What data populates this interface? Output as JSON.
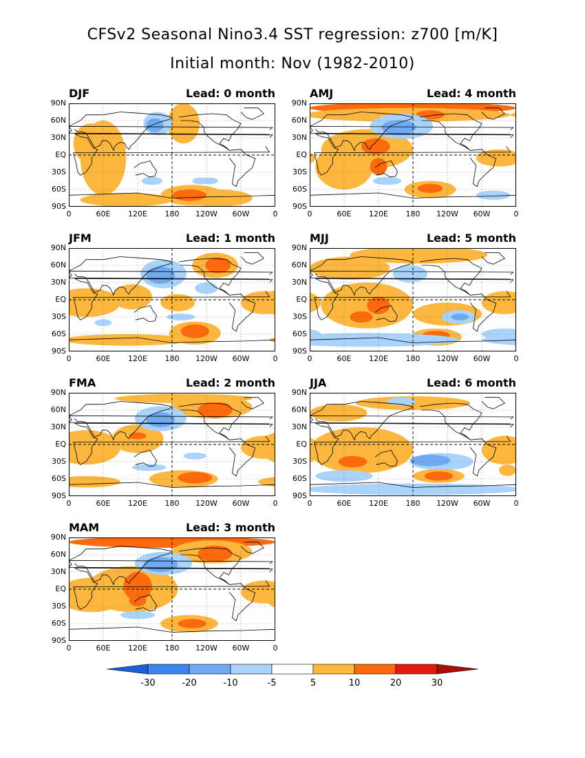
{
  "title": {
    "line1": "CFSv2 Seasonal Nino3.4 SST regression: z700 [m/K]",
    "line2": "Initial month: Nov (1982-2010)"
  },
  "lat_ticks": [
    "90N",
    "60N",
    "30N",
    "EQ",
    "30S",
    "60S",
    "90S"
  ],
  "lon_ticks": [
    "0",
    "60E",
    "120E",
    "180",
    "120W",
    "60W",
    "0"
  ],
  "colors": {
    "n30": "#1f5fd6",
    "n20": "#3b86ec",
    "n10": "#6fa9f2",
    "n5": "#a9d3fb",
    "p5": "#fdb73f",
    "p10": "#fd6a0d",
    "p20": "#e11c0f",
    "p30": "#a50f0a"
  },
  "panels": [
    {
      "id": "djf",
      "season": "DJF",
      "lead": "Lead: 0 month",
      "blobs": [
        {
          "c": "p5",
          "x": 200,
          "y": 55,
          "rx": 28,
          "ry": 35
        },
        {
          "c": "p5",
          "x": 60,
          "y": -5,
          "rx": 40,
          "ry": 65
        },
        {
          "c": "p5",
          "x": 38,
          "y": 20,
          "rx": 30,
          "ry": 35
        },
        {
          "c": "p5",
          "x": 215,
          "y": -70,
          "rx": 55,
          "ry": 18
        },
        {
          "c": "p5",
          "x": 260,
          "y": -75,
          "rx": 60,
          "ry": 15
        },
        {
          "c": "p5",
          "x": 100,
          "y": -78,
          "rx": 80,
          "ry": 12
        },
        {
          "c": "p10",
          "x": 210,
          "y": -70,
          "rx": 30,
          "ry": 10
        },
        {
          "c": "n5",
          "x": 155,
          "y": 55,
          "rx": 25,
          "ry": 20
        },
        {
          "c": "n10",
          "x": 150,
          "y": 52,
          "rx": 15,
          "ry": 12
        },
        {
          "c": "n5",
          "x": 145,
          "y": -45,
          "rx": 18,
          "ry": 7
        },
        {
          "c": "n5",
          "x": 230,
          "y": -45,
          "rx": 15,
          "ry": 6
        },
        {
          "c": "n5",
          "x": -115,
          "y": -45,
          "rx": 15,
          "ry": 6
        }
      ]
    },
    {
      "id": "amj",
      "season": "AMJ",
      "lead": "Lead: 4 month",
      "blobs": [
        {
          "c": "p10",
          "x": 180,
          "y": 82,
          "rx": 180,
          "ry": 10
        },
        {
          "c": "p5",
          "x": 170,
          "y": 70,
          "rx": 180,
          "ry": 12
        },
        {
          "c": "p5",
          "x": 100,
          "y": 10,
          "rx": 80,
          "ry": 35
        },
        {
          "c": "p5",
          "x": 60,
          "y": -20,
          "rx": 50,
          "ry": 40
        },
        {
          "c": "p5",
          "x": -30,
          "y": -5,
          "rx": 40,
          "ry": 15
        },
        {
          "c": "p10",
          "x": 115,
          "y": 15,
          "rx": 25,
          "ry": 14
        },
        {
          "c": "p10",
          "x": 120,
          "y": -20,
          "rx": 15,
          "ry": 15
        },
        {
          "c": "p10",
          "x": 210,
          "y": 70,
          "rx": 25,
          "ry": 8
        },
        {
          "c": "n5",
          "x": 160,
          "y": 50,
          "rx": 55,
          "ry": 22
        },
        {
          "c": "n10",
          "x": 155,
          "y": 48,
          "rx": 30,
          "ry": 13
        },
        {
          "c": "p5",
          "x": 210,
          "y": -60,
          "rx": 45,
          "ry": 15
        },
        {
          "c": "p10",
          "x": 210,
          "y": -58,
          "rx": 22,
          "ry": 8
        },
        {
          "c": "n5",
          "x": 135,
          "y": -45,
          "rx": 25,
          "ry": 7
        },
        {
          "c": "n5",
          "x": 320,
          "y": -70,
          "rx": 30,
          "ry": 8
        }
      ]
    },
    {
      "id": "jfm",
      "season": "JFM",
      "lead": "Lead: 1 month",
      "blobs": [
        {
          "c": "p5",
          "x": 255,
          "y": 60,
          "rx": 40,
          "ry": 22
        },
        {
          "c": "p10",
          "x": 260,
          "y": 60,
          "rx": 22,
          "ry": 14
        },
        {
          "c": "p5",
          "x": 30,
          "y": -5,
          "rx": 60,
          "ry": 25
        },
        {
          "c": "p5",
          "x": -20,
          "y": -5,
          "rx": 40,
          "ry": 20
        },
        {
          "c": "p5",
          "x": 110,
          "y": 5,
          "rx": 35,
          "ry": 22
        },
        {
          "c": "p5",
          "x": 190,
          "y": -5,
          "rx": 30,
          "ry": 15
        },
        {
          "c": "n5",
          "x": 165,
          "y": 45,
          "rx": 40,
          "ry": 25
        },
        {
          "c": "n10",
          "x": 160,
          "y": 43,
          "rx": 25,
          "ry": 15
        },
        {
          "c": "n5",
          "x": 240,
          "y": 20,
          "rx": 20,
          "ry": 10
        },
        {
          "c": "p5",
          "x": 100,
          "y": -70,
          "rx": 110,
          "ry": 10
        },
        {
          "c": "p5",
          "x": 220,
          "y": -58,
          "rx": 45,
          "ry": 20
        },
        {
          "c": "p10",
          "x": 220,
          "y": -55,
          "rx": 25,
          "ry": 12
        },
        {
          "c": "n5",
          "x": 60,
          "y": -40,
          "rx": 15,
          "ry": 6
        },
        {
          "c": "n5",
          "x": 195,
          "y": -30,
          "rx": 25,
          "ry": 6
        }
      ]
    },
    {
      "id": "mjj",
      "season": "MJJ",
      "lead": "Lead: 5 month",
      "blobs": [
        {
          "c": "p5",
          "x": 190,
          "y": 78,
          "rx": 120,
          "ry": 15
        },
        {
          "c": "p5",
          "x": 70,
          "y": 55,
          "rx": 70,
          "ry": 20
        },
        {
          "c": "p5",
          "x": 100,
          "y": -10,
          "rx": 80,
          "ry": 40
        },
        {
          "c": "p5",
          "x": -20,
          "y": -5,
          "rx": 40,
          "ry": 20
        },
        {
          "c": "p10",
          "x": 120,
          "y": -10,
          "rx": 20,
          "ry": 15
        },
        {
          "c": "p10",
          "x": 90,
          "y": -30,
          "rx": 20,
          "ry": 10
        },
        {
          "c": "n5",
          "x": 175,
          "y": 45,
          "rx": 30,
          "ry": 15
        },
        {
          "c": "p5",
          "x": 240,
          "y": -25,
          "rx": 60,
          "ry": 20
        },
        {
          "c": "n5",
          "x": 260,
          "y": -30,
          "rx": 30,
          "ry": 12
        },
        {
          "c": "n10",
          "x": 262,
          "y": -30,
          "rx": 15,
          "ry": 6
        },
        {
          "c": "p5",
          "x": 220,
          "y": -65,
          "rx": 45,
          "ry": 15
        },
        {
          "c": "p10",
          "x": 220,
          "y": -63,
          "rx": 25,
          "ry": 9
        },
        {
          "c": "n5",
          "x": 100,
          "y": -70,
          "rx": 160,
          "ry": 12
        },
        {
          "c": "n5",
          "x": -20,
          "y": -60,
          "rx": 40,
          "ry": 10
        }
      ]
    },
    {
      "id": "fma",
      "season": "FMA",
      "lead": "Lead: 2 month",
      "blobs": [
        {
          "c": "p5",
          "x": 250,
          "y": 65,
          "rx": 70,
          "ry": 20
        },
        {
          "c": "p10",
          "x": 255,
          "y": 60,
          "rx": 30,
          "ry": 14
        },
        {
          "c": "p5",
          "x": 200,
          "y": 80,
          "rx": 120,
          "ry": 8
        },
        {
          "c": "p5",
          "x": 30,
          "y": -5,
          "rx": 60,
          "ry": 30
        },
        {
          "c": "p5",
          "x": -20,
          "y": -5,
          "rx": 40,
          "ry": 20
        },
        {
          "c": "p5",
          "x": 120,
          "y": 10,
          "rx": 45,
          "ry": 25
        },
        {
          "c": "p10",
          "x": 120,
          "y": 15,
          "rx": 15,
          "ry": 6
        },
        {
          "c": "n5",
          "x": 160,
          "y": 45,
          "rx": 45,
          "ry": 22
        },
        {
          "c": "n10",
          "x": 160,
          "y": 43,
          "rx": 25,
          "ry": 13
        },
        {
          "c": "p5",
          "x": 200,
          "y": -60,
          "rx": 60,
          "ry": 15
        },
        {
          "c": "p10",
          "x": 220,
          "y": -58,
          "rx": 30,
          "ry": 10
        },
        {
          "c": "p5",
          "x": 30,
          "y": -65,
          "rx": 60,
          "ry": 10
        },
        {
          "c": "n5",
          "x": 140,
          "y": -40,
          "rx": 30,
          "ry": 6
        },
        {
          "c": "n5",
          "x": 220,
          "y": -20,
          "rx": 20,
          "ry": 6
        }
      ]
    },
    {
      "id": "jja",
      "season": "JJA",
      "lead": "Lead: 6 month",
      "blobs": [
        {
          "c": "p5",
          "x": 180,
          "y": 72,
          "rx": 100,
          "ry": 12
        },
        {
          "c": "p5",
          "x": 50,
          "y": 55,
          "rx": 50,
          "ry": 15
        },
        {
          "c": "p5",
          "x": 90,
          "y": -10,
          "rx": 90,
          "ry": 40
        },
        {
          "c": "p5",
          "x": -20,
          "y": -10,
          "rx": 40,
          "ry": 25
        },
        {
          "c": "p10",
          "x": 75,
          "y": -30,
          "rx": 25,
          "ry": 10
        },
        {
          "c": "n5",
          "x": 160,
          "y": 75,
          "rx": 25,
          "ry": 7
        },
        {
          "c": "n5",
          "x": 230,
          "y": -30,
          "rx": 55,
          "ry": 15
        },
        {
          "c": "n10",
          "x": 210,
          "y": -28,
          "rx": 35,
          "ry": 10
        },
        {
          "c": "p5",
          "x": 225,
          "y": -55,
          "rx": 45,
          "ry": 12
        },
        {
          "c": "p10",
          "x": 225,
          "y": -55,
          "rx": 25,
          "ry": 8
        },
        {
          "c": "n5",
          "x": 180,
          "y": -78,
          "rx": 190,
          "ry": 10
        },
        {
          "c": "n5",
          "x": 60,
          "y": -55,
          "rx": 50,
          "ry": 10
        },
        {
          "c": "p5",
          "x": -15,
          "y": -45,
          "rx": 15,
          "ry": 10
        }
      ]
    },
    {
      "id": "mam",
      "season": "MAM",
      "lead": "Lead: 3 month",
      "blobs": [
        {
          "c": "p10",
          "x": 180,
          "y": 82,
          "rx": 180,
          "ry": 10
        },
        {
          "c": "p5",
          "x": 250,
          "y": 65,
          "rx": 70,
          "ry": 20
        },
        {
          "c": "p10",
          "x": 255,
          "y": 62,
          "rx": 30,
          "ry": 14
        },
        {
          "c": "p5",
          "x": 110,
          "y": 0,
          "rx": 80,
          "ry": 40
        },
        {
          "c": "p5",
          "x": 40,
          "y": -10,
          "rx": 60,
          "ry": 30
        },
        {
          "c": "p5",
          "x": -20,
          "y": -5,
          "rx": 40,
          "ry": 20
        },
        {
          "c": "p10",
          "x": 120,
          "y": 5,
          "rx": 25,
          "ry": 25
        },
        {
          "c": "p10",
          "x": 120,
          "y": -20,
          "rx": 15,
          "ry": 10
        },
        {
          "c": "n5",
          "x": 165,
          "y": 45,
          "rx": 50,
          "ry": 20
        },
        {
          "c": "n10",
          "x": 160,
          "y": 43,
          "rx": 30,
          "ry": 13
        },
        {
          "c": "p5",
          "x": 210,
          "y": -60,
          "rx": 50,
          "ry": 15
        },
        {
          "c": "p10",
          "x": 215,
          "y": -60,
          "rx": 25,
          "ry": 8
        },
        {
          "c": "n5",
          "x": 120,
          "y": -45,
          "rx": 30,
          "ry": 7
        }
      ]
    }
  ],
  "colorbar": {
    "labels": [
      "-30",
      "-20",
      "-10",
      "-5",
      "5",
      "10",
      "20",
      "30"
    ],
    "fills": [
      "#1f5fd6",
      "#3b86ec",
      "#6fa9f2",
      "#a9d3fb",
      "#ffffff",
      "#fdb73f",
      "#fd6a0d",
      "#e11c0f",
      "#a50f0a"
    ]
  }
}
